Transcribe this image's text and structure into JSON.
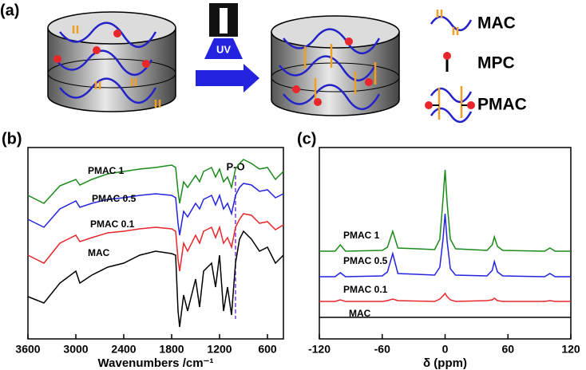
{
  "diagram": {
    "panel_label": "(a)",
    "lamp_label": "UV",
    "legend": [
      "MAC",
      "MPC",
      "PMAC"
    ]
  },
  "chart_data": [
    {
      "type": "line",
      "panel_label": "(b)",
      "x_label": "Wavenumbers /cm⁻¹",
      "x": [
        3600,
        3400,
        3200,
        3000,
        2950,
        2800,
        2600,
        2400,
        2200,
        2000,
        1800,
        1750,
        1720,
        1700,
        1650,
        1600,
        1500,
        1450,
        1400,
        1300,
        1250,
        1200,
        1150,
        1100,
        1050,
        1000,
        950,
        900,
        800,
        700,
        600,
        500,
        400
      ],
      "xlim": [
        3600,
        400
      ],
      "xticks": [
        3600,
        3000,
        2400,
        1800,
        1200,
        600
      ],
      "ylim": [
        0,
        240
      ],
      "annotation": {
        "text": "P-O",
        "x": 1000,
        "color": "#7a3bd6"
      },
      "series": [
        {
          "name": "MAC",
          "color": "#000000",
          "values": [
            53,
            45,
            70,
            85,
            70,
            80,
            90,
            95,
            105,
            110,
            107,
            105,
            35,
            15,
            55,
            35,
            75,
            40,
            85,
            95,
            65,
            105,
            35,
            65,
            30,
            95,
            125,
            135,
            125,
            110,
            115,
            95,
            105
          ]
        },
        {
          "name": "PMAC 0.1",
          "color": "#e8262b",
          "values": [
            105,
            95,
            120,
            130,
            122,
            127,
            133,
            135,
            138,
            140,
            138,
            135,
            100,
            85,
            120,
            110,
            130,
            120,
            135,
            140,
            127,
            140,
            120,
            127,
            115,
            140,
            150,
            157,
            155,
            145,
            147,
            137,
            143
          ]
        },
        {
          "name": "PMAC 0.5",
          "color": "#2323e0",
          "values": [
            150,
            140,
            163,
            173,
            165,
            170,
            175,
            177,
            180,
            182,
            180,
            177,
            145,
            130,
            160,
            153,
            170,
            163,
            175,
            180,
            168,
            180,
            163,
            170,
            157,
            180,
            190,
            195,
            193,
            185,
            187,
            177,
            182
          ]
        },
        {
          "name": "PMAC 1",
          "color": "#1a8a1a",
          "values": [
            180,
            170,
            192,
            200,
            193,
            200,
            207,
            210,
            213,
            215,
            218,
            215,
            185,
            170,
            197,
            190,
            205,
            197,
            210,
            215,
            203,
            213,
            197,
            203,
            190,
            213,
            220,
            225,
            220,
            213,
            215,
            200,
            210
          ]
        }
      ]
    },
    {
      "type": "line",
      "panel_label": "(c)",
      "x_label": "δ (ppm)",
      "x": [
        -120,
        -105,
        -100,
        -95,
        -60,
        -55,
        -50,
        -45,
        -10,
        -5,
        -2,
        0,
        2,
        5,
        10,
        40,
        45,
        47,
        50,
        55,
        95,
        100,
        105,
        120
      ],
      "xlim": [
        -120,
        120
      ],
      "xticks": [
        -120,
        -60,
        0,
        60,
        120
      ],
      "ylim": [
        0,
        240
      ],
      "series": [
        {
          "name": "MAC",
          "color": "#000000",
          "values": [
            27,
            27,
            27,
            27,
            27,
            27,
            27,
            27,
            27,
            27,
            27,
            27,
            27,
            27,
            27,
            27,
            27,
            27,
            27,
            27,
            27,
            27,
            27,
            27
          ]
        },
        {
          "name": "PMAC 0.1",
          "color": "#e8262b",
          "values": [
            47,
            47,
            49,
            47,
            47,
            48,
            50,
            48,
            47,
            50,
            54,
            57,
            53,
            49,
            47,
            48,
            49,
            51,
            48,
            47,
            47,
            48,
            47,
            47
          ]
        },
        {
          "name": "PMAC 0.5",
          "color": "#2323e0",
          "values": [
            78,
            78,
            83,
            78,
            79,
            84,
            107,
            82,
            80,
            90,
            125,
            157,
            122,
            88,
            80,
            79,
            86,
            97,
            84,
            79,
            78,
            82,
            78,
            78
          ]
        },
        {
          "name": "PMAC 1",
          "color": "#1a8a1a",
          "values": [
            110,
            110,
            118,
            110,
            111,
            115,
            135,
            114,
            112,
            125,
            175,
            212,
            170,
            125,
            113,
            111,
            118,
            128,
            116,
            111,
            110,
            114,
            110,
            110
          ]
        }
      ]
    }
  ]
}
